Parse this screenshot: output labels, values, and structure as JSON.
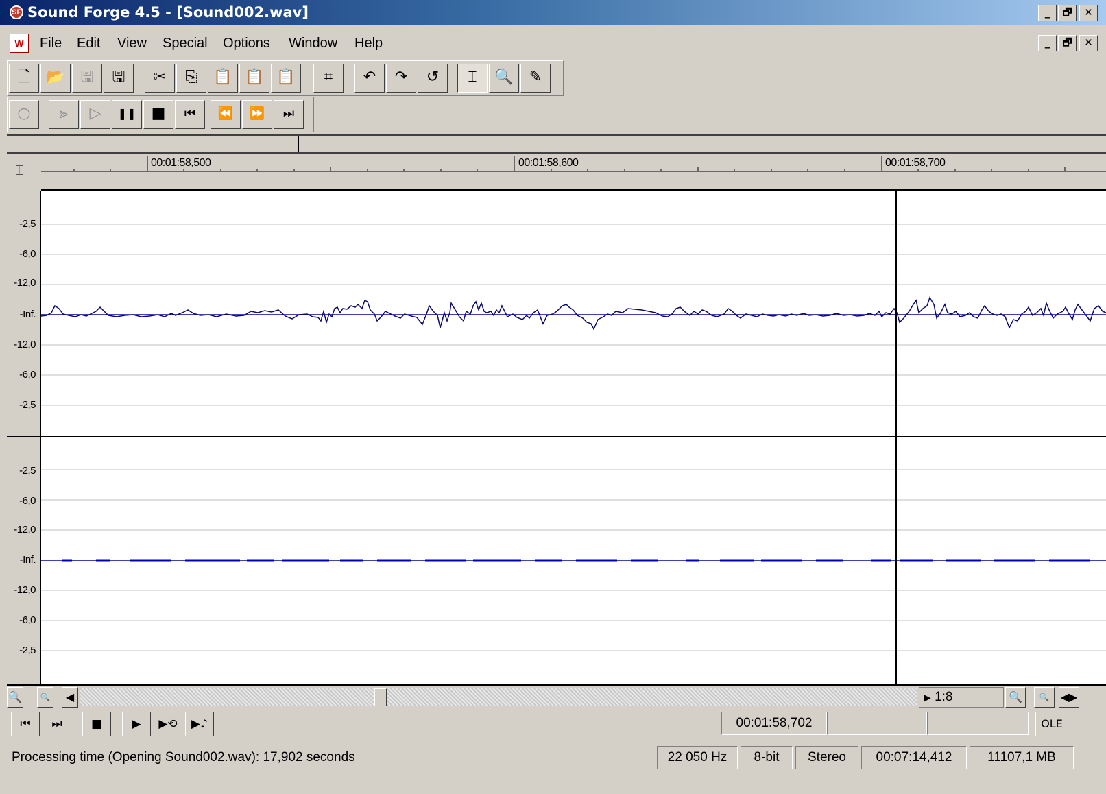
{
  "window": {
    "title": "Sound Forge 4.5 - [Sound002.wav]",
    "caption_buttons": [
      "_",
      "🗗",
      "✕"
    ]
  },
  "menu": {
    "items": [
      {
        "label": "File"
      },
      {
        "label": "Edit"
      },
      {
        "label": "View"
      },
      {
        "label": "Special"
      },
      {
        "label": "Options"
      },
      {
        "label": "Window"
      },
      {
        "label": "Help"
      }
    ]
  },
  "toolbar": {
    "buttons": [
      {
        "name": "new-icon",
        "glyph": "🗋"
      },
      {
        "name": "open-icon",
        "glyph": "📂"
      },
      {
        "name": "save-disabled-icon",
        "glyph": "🖫"
      },
      {
        "name": "save-as-icon",
        "glyph": "🖫"
      },
      {
        "name": "cut-icon",
        "glyph": "✂"
      },
      {
        "name": "copy-icon",
        "glyph": "⎘"
      },
      {
        "name": "paste-icon",
        "glyph": "📋"
      },
      {
        "name": "paste-new-icon",
        "glyph": "📋"
      },
      {
        "name": "mix-icon",
        "glyph": "📋"
      },
      {
        "name": "trim-crop-icon",
        "glyph": "⌗"
      },
      {
        "name": "undo-icon",
        "glyph": "↶"
      },
      {
        "name": "redo-icon",
        "glyph": "↷"
      },
      {
        "name": "repeat-icon",
        "glyph": "↺"
      },
      {
        "name": "edit-tool-icon",
        "glyph": "⌶"
      },
      {
        "name": "magnify-tool-icon",
        "glyph": "🔍"
      },
      {
        "name": "pencil-tool-icon",
        "glyph": "✎"
      }
    ]
  },
  "transport_top": {
    "buttons": [
      {
        "name": "record-icon",
        "glyph": "○"
      },
      {
        "name": "play-all-icon",
        "glyph": "⫸"
      },
      {
        "name": "play-icon",
        "glyph": "▷"
      },
      {
        "name": "pause-icon",
        "glyph": "❚❚"
      },
      {
        "name": "stop-icon",
        "glyph": "■"
      },
      {
        "name": "go-to-start-icon",
        "glyph": "⏮"
      },
      {
        "name": "rewind-icon",
        "glyph": "⏪"
      },
      {
        "name": "forward-icon",
        "glyph": "⏩"
      },
      {
        "name": "go-to-end-icon",
        "glyph": "⏭"
      }
    ]
  },
  "ruler": {
    "labels": [
      "00:01:58,500",
      "00:01:58,600",
      "00:01:58,700"
    ]
  },
  "channels": {
    "y_labels": [
      "-2,5",
      "-6,0",
      "-12,0",
      "-Inf.",
      "-12,0",
      "-6,0",
      "-2,5"
    ]
  },
  "scrollbar": {
    "zoom_ratio": "1:8",
    "zoom_ratio_arrow": "▶"
  },
  "transport_bottom": {
    "buttons": [
      {
        "name": "go-to-start-icon",
        "glyph": "⏮"
      },
      {
        "name": "go-to-end-icon",
        "glyph": "⏭"
      },
      {
        "name": "stop-icon",
        "glyph": "■"
      },
      {
        "name": "play-normal-icon",
        "glyph": "▶"
      },
      {
        "name": "play-looped-icon",
        "glyph": "▶⟲"
      },
      {
        "name": "play-plugin-icon",
        "glyph": "▶♪"
      }
    ],
    "position": "00:01:58,702",
    "ole_label": "OLE"
  },
  "status": {
    "message": "Processing time (Opening Sound002.wav): 17,902 seconds",
    "sample_rate": "22 050 Hz",
    "bit_depth": "8-bit",
    "channels": "Stereo",
    "length": "00:07:14,412",
    "free_space": "11107,1 MB"
  }
}
